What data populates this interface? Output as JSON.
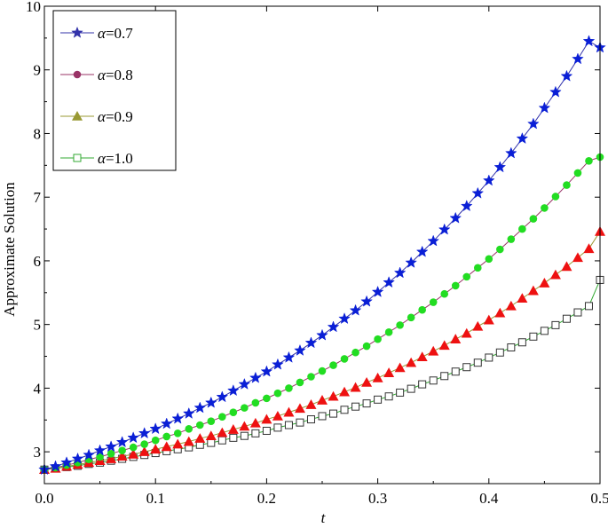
{
  "chart_data": {
    "type": "line",
    "title": "",
    "xlabel": "t",
    "ylabel": "Approximate Solution",
    "xlim": [
      0,
      0.5
    ],
    "ylim": [
      2.5,
      10
    ],
    "x_ticks": [
      "0.0",
      "0.1",
      "0.2",
      "0.3",
      "0.4",
      "0.5"
    ],
    "y_ticks": [
      "3",
      "4",
      "5",
      "6",
      "7",
      "8",
      "9",
      "10"
    ],
    "legend_position": "top-left",
    "grid": false,
    "x": [
      0.0,
      0.01,
      0.02,
      0.03,
      0.04,
      0.05,
      0.06,
      0.07,
      0.08,
      0.09,
      0.1,
      0.11,
      0.12,
      0.13,
      0.14,
      0.15,
      0.16,
      0.17,
      0.18,
      0.19,
      0.2,
      0.21,
      0.22,
      0.23,
      0.24,
      0.25,
      0.26,
      0.27,
      0.28,
      0.29,
      0.3,
      0.31,
      0.32,
      0.33,
      0.34,
      0.35,
      0.36,
      0.37,
      0.38,
      0.39,
      0.4,
      0.41,
      0.42,
      0.43,
      0.44,
      0.45,
      0.46,
      0.47,
      0.48,
      0.49,
      0.5
    ],
    "series": [
      {
        "name": "α=0.7",
        "alpha_symbol": "α",
        "label_suffix": "=0.7",
        "line_color": "#3333aa",
        "marker_color": "#0a1fd6",
        "marker": "star",
        "values": [
          2.72,
          2.77,
          2.83,
          2.89,
          2.95,
          3.02,
          3.08,
          3.15,
          3.22,
          3.29,
          3.36,
          3.44,
          3.52,
          3.6,
          3.69,
          3.77,
          3.86,
          3.96,
          4.06,
          4.16,
          4.26,
          4.37,
          4.48,
          4.59,
          4.71,
          4.83,
          4.96,
          5.09,
          5.22,
          5.36,
          5.51,
          5.66,
          5.81,
          5.97,
          6.14,
          6.31,
          6.49,
          6.67,
          6.86,
          7.06,
          7.26,
          7.47,
          7.69,
          7.92,
          8.15,
          8.4,
          8.65,
          8.9,
          9.17,
          9.45,
          9.35
        ]
      },
      {
        "name": "α=0.8",
        "alpha_symbol": "α",
        "label_suffix": "=0.8",
        "line_color": "#993366",
        "marker_color": "#22dd22",
        "marker": "circle",
        "values": [
          2.72,
          2.75,
          2.79,
          2.83,
          2.88,
          2.92,
          2.97,
          3.02,
          3.07,
          3.12,
          3.18,
          3.24,
          3.29,
          3.36,
          3.42,
          3.48,
          3.55,
          3.62,
          3.69,
          3.77,
          3.84,
          3.92,
          4.0,
          4.09,
          4.18,
          4.27,
          4.36,
          4.46,
          4.56,
          4.66,
          4.77,
          4.88,
          4.99,
          5.11,
          5.23,
          5.35,
          5.48,
          5.61,
          5.75,
          5.89,
          6.03,
          6.18,
          6.34,
          6.5,
          6.66,
          6.83,
          7.01,
          7.19,
          7.38,
          7.57,
          7.63
        ]
      },
      {
        "name": "α=0.9",
        "alpha_symbol": "α",
        "label_suffix": "=0.9",
        "line_color": "#999933",
        "marker_color": "#ee1111",
        "marker": "triangle",
        "values": [
          2.72,
          2.74,
          2.77,
          2.8,
          2.83,
          2.86,
          2.89,
          2.93,
          2.96,
          3.0,
          3.04,
          3.08,
          3.12,
          3.16,
          3.21,
          3.25,
          3.3,
          3.35,
          3.4,
          3.45,
          3.51,
          3.56,
          3.62,
          3.68,
          3.74,
          3.81,
          3.87,
          3.94,
          4.01,
          4.09,
          4.16,
          4.24,
          4.32,
          4.4,
          4.49,
          4.58,
          4.67,
          4.77,
          4.86,
          4.97,
          5.07,
          5.18,
          5.29,
          5.41,
          5.53,
          5.65,
          5.78,
          5.91,
          6.05,
          6.19,
          6.46
        ]
      },
      {
        "name": "α=1.0",
        "alpha_symbol": "α",
        "label_suffix": "=1.0",
        "line_color": "#33aa33",
        "marker_color": "#333333",
        "marker": "square-open",
        "values": [
          2.72,
          2.74,
          2.76,
          2.78,
          2.81,
          2.83,
          2.86,
          2.89,
          2.92,
          2.95,
          2.98,
          3.01,
          3.04,
          3.07,
          3.11,
          3.14,
          3.18,
          3.22,
          3.25,
          3.29,
          3.33,
          3.38,
          3.42,
          3.46,
          3.51,
          3.56,
          3.6,
          3.66,
          3.71,
          3.76,
          3.82,
          3.87,
          3.93,
          3.99,
          4.06,
          4.12,
          4.19,
          4.26,
          4.33,
          4.4,
          4.48,
          4.56,
          4.64,
          4.72,
          4.81,
          4.9,
          4.99,
          5.09,
          5.19,
          5.29,
          5.7
        ]
      }
    ]
  }
}
